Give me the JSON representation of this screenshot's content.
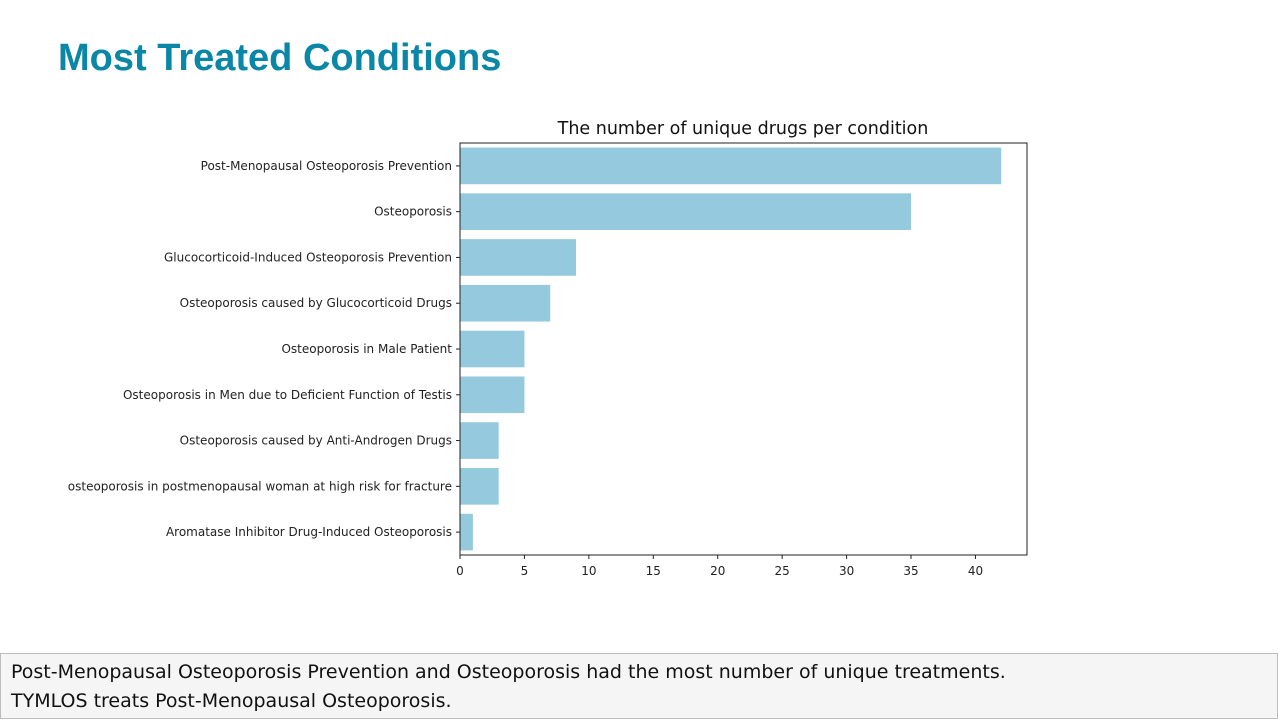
{
  "slide": {
    "title": "Most Treated Conditions"
  },
  "caption": {
    "line1": "Post-Menopausal Osteoporosis Prevention and Osteoporosis had the most number of unique treatments.",
    "line2": "TYMLOS treats Post-Menopausal Osteoporosis."
  },
  "chart_data": {
    "type": "bar",
    "orientation": "horizontal",
    "title": "The number of unique drugs per condition",
    "xlabel": "",
    "ylabel": "",
    "categories": [
      "Post-Menopausal Osteoporosis Prevention",
      "Osteoporosis",
      "Glucocorticoid-Induced Osteoporosis Prevention",
      "Osteoporosis caused by Glucocorticoid Drugs",
      "Osteoporosis in Male Patient",
      "Osteoporosis in Men due to Deficient Function of Testis",
      "Osteoporosis caused by Anti-Androgen Drugs",
      "osteoporosis in postmenopausal woman at high risk for fracture",
      "Aromatase Inhibitor Drug-Induced Osteoporosis"
    ],
    "values": [
      42,
      35,
      9,
      7,
      5,
      5,
      3,
      3,
      1
    ],
    "xlim": [
      0,
      44
    ],
    "xticks": [
      0,
      5,
      10,
      15,
      20,
      25,
      30,
      35,
      40
    ],
    "grid": false,
    "bar_color": "#94c9de"
  }
}
